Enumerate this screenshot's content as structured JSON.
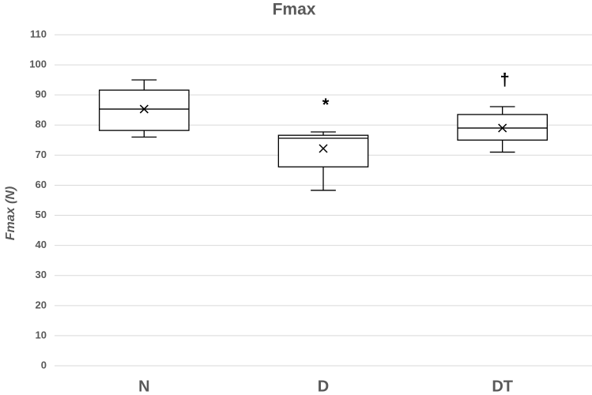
{
  "chart_data": {
    "type": "box",
    "title": "Fmax",
    "y_label": "Fmax (N)",
    "categories": [
      "N",
      "D",
      "DT"
    ],
    "min": [
      76,
      58.3,
      71
    ],
    "q1": [
      78.2,
      66.1,
      75
    ],
    "median": [
      85.3,
      75.6,
      79
    ],
    "q3": [
      91.6,
      76.6,
      83.5
    ],
    "max": [
      95,
      77.7,
      86.1
    ],
    "mean": [
      85.3,
      72.2,
      79
    ],
    "ylim": [
      0,
      110
    ],
    "yticks": [
      0,
      10,
      20,
      30,
      40,
      50,
      60,
      70,
      80,
      90,
      100,
      110
    ],
    "grid": true,
    "color": "#000000",
    "annotations": [
      {
        "category": "D",
        "text": "*"
      },
      {
        "category": "DT",
        "text": "†"
      }
    ]
  }
}
